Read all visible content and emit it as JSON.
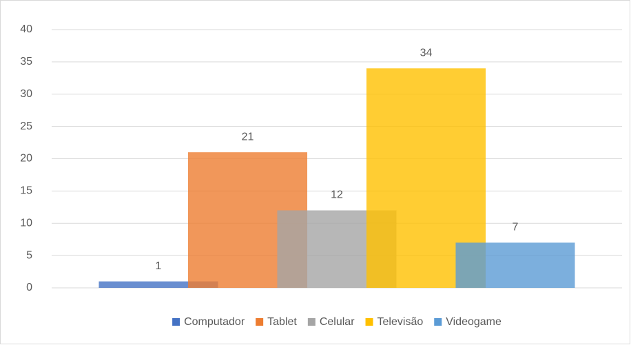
{
  "chart_data": {
    "type": "bar",
    "categories": [
      null
    ],
    "series": [
      {
        "name": "Computador",
        "color": "#4472c4",
        "values": [
          1
        ]
      },
      {
        "name": "Tablet",
        "color": "#ed7d31",
        "values": [
          21
        ]
      },
      {
        "name": "Celular",
        "color": "#a5a5a5",
        "values": [
          12
        ]
      },
      {
        "name": "Televisão",
        "color": "#ffc000",
        "values": [
          34
        ]
      },
      {
        "name": "Videogame",
        "color": "#5b9bd5",
        "values": [
          7
        ]
      }
    ],
    "ylim": [
      0,
      40
    ],
    "yticks": [
      0,
      5,
      10,
      15,
      20,
      25,
      30,
      35,
      40
    ],
    "grid": true,
    "legend": "bottom"
  }
}
